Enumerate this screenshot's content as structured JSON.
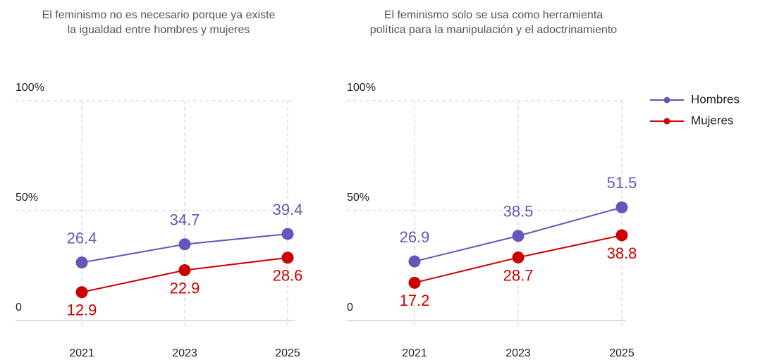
{
  "chart_data": [
    {
      "type": "line",
      "title": [
        "El feminismo no es necesario porque ya existe",
        "la igualdad entre hombres y mujeres"
      ],
      "categories": [
        "2021",
        "2023",
        "2025"
      ],
      "series": [
        {
          "name": "Hombres",
          "color": "#6655bb",
          "values": [
            26.4,
            34.7,
            39.4
          ]
        },
        {
          "name": "Mujeres",
          "color": "#cc0000",
          "values": [
            12.9,
            22.9,
            28.6
          ]
        }
      ],
      "ylim": [
        0,
        100
      ],
      "yticks": [
        0,
        {
          "value": 50,
          "label": "50%"
        },
        {
          "value": 100,
          "label": "100%"
        }
      ],
      "grid": true
    },
    {
      "type": "line",
      "title": [
        "El feminismo solo se usa como herramienta",
        "política para la manipulación y el adoctrinamiento"
      ],
      "categories": [
        "2021",
        "2023",
        "2025"
      ],
      "series": [
        {
          "name": "Hombres",
          "color": "#6655bb",
          "values": [
            26.9,
            38.5,
            51.5
          ]
        },
        {
          "name": "Mujeres",
          "color": "#cc0000",
          "values": [
            17.2,
            28.7,
            38.8
          ]
        }
      ],
      "ylim": [
        0,
        100
      ],
      "yticks": [
        0,
        {
          "value": 50,
          "label": "50%"
        },
        {
          "value": 100,
          "label": "100%"
        }
      ],
      "grid": true,
      "legend": "right"
    }
  ]
}
